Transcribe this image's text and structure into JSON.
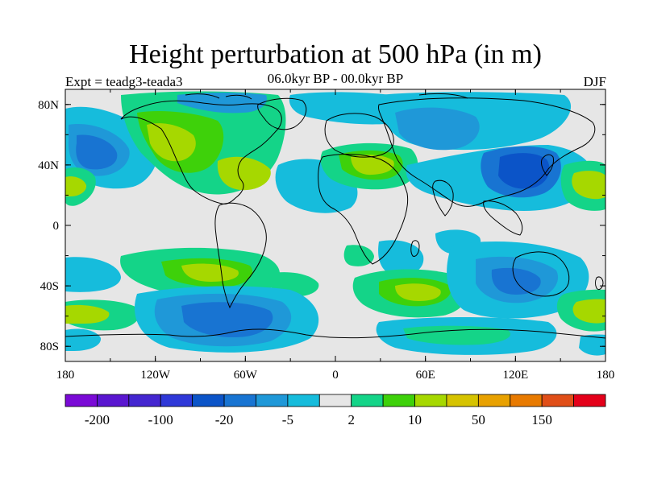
{
  "header": {
    "title": "Height perturbation at 500 hPa (in m)",
    "experiment": "Expt = teadg3-teada3",
    "period": "06.0kyr BP - 00.0kyr BP",
    "season": "DJF"
  },
  "map": {
    "projection": "equirectangular",
    "background_color": "#e6e6e6",
    "lon_range": [
      -180,
      180
    ],
    "lat_range": [
      -90,
      90
    ],
    "lon_ticks": [
      "180",
      "120W",
      "60W",
      "0",
      "60E",
      "120E",
      "180"
    ],
    "lat_ticks": [
      "80N",
      "40N",
      "0",
      "40S",
      "80S"
    ],
    "contour_regions": [
      {
        "name": "n-pacific-low",
        "lon": -150,
        "lat": 45,
        "level": -5,
        "color": "#2a8ad6"
      },
      {
        "name": "greenland-high",
        "lon": -60,
        "lat": 70,
        "level": 10,
        "color": "#a6d800"
      },
      {
        "name": "atlantic-low",
        "lon": -20,
        "lat": 25,
        "level": -5,
        "color": "#1fa0d8"
      },
      {
        "name": "europe-high",
        "lon": 30,
        "lat": 45,
        "level": 10,
        "color": "#a6d800"
      },
      {
        "name": "siberia-low",
        "lon": 75,
        "lat": 60,
        "level": -5,
        "color": "#1fa0d8"
      },
      {
        "name": "japan-low",
        "lon": 135,
        "lat": 40,
        "level": -20,
        "color": "#0b54c8"
      },
      {
        "name": "s-pacific-high",
        "lon": -120,
        "lat": -30,
        "level": 10,
        "color": "#a6d800"
      },
      {
        "name": "southern-ocean-low",
        "lon": -60,
        "lat": -60,
        "level": -20,
        "color": "#0b54c8"
      },
      {
        "name": "indian-ocean-high",
        "lon": 60,
        "lat": -45,
        "level": 10,
        "color": "#a6d800"
      },
      {
        "name": "australia-low",
        "lon": 120,
        "lat": -40,
        "level": -5,
        "color": "#1fa0d8"
      },
      {
        "name": "antarctic-low-east",
        "lon": 90,
        "lat": -75,
        "level": -5,
        "color": "#1fa0d8"
      }
    ]
  },
  "colorbar": {
    "colors": [
      "#7a0ad6",
      "#5a16d0",
      "#4426d0",
      "#2f38d8",
      "#0b54c8",
      "#1874d2",
      "#1f98d8",
      "#16bcdc",
      "#e6e6e6",
      "#14d488",
      "#3ed10a",
      "#a6d800",
      "#d6c300",
      "#e8a100",
      "#e87a00",
      "#e04e18",
      "#e4001a"
    ],
    "labels": [
      "-200",
      "-100",
      "-20",
      "-5",
      "2",
      "10",
      "50",
      "150"
    ]
  }
}
